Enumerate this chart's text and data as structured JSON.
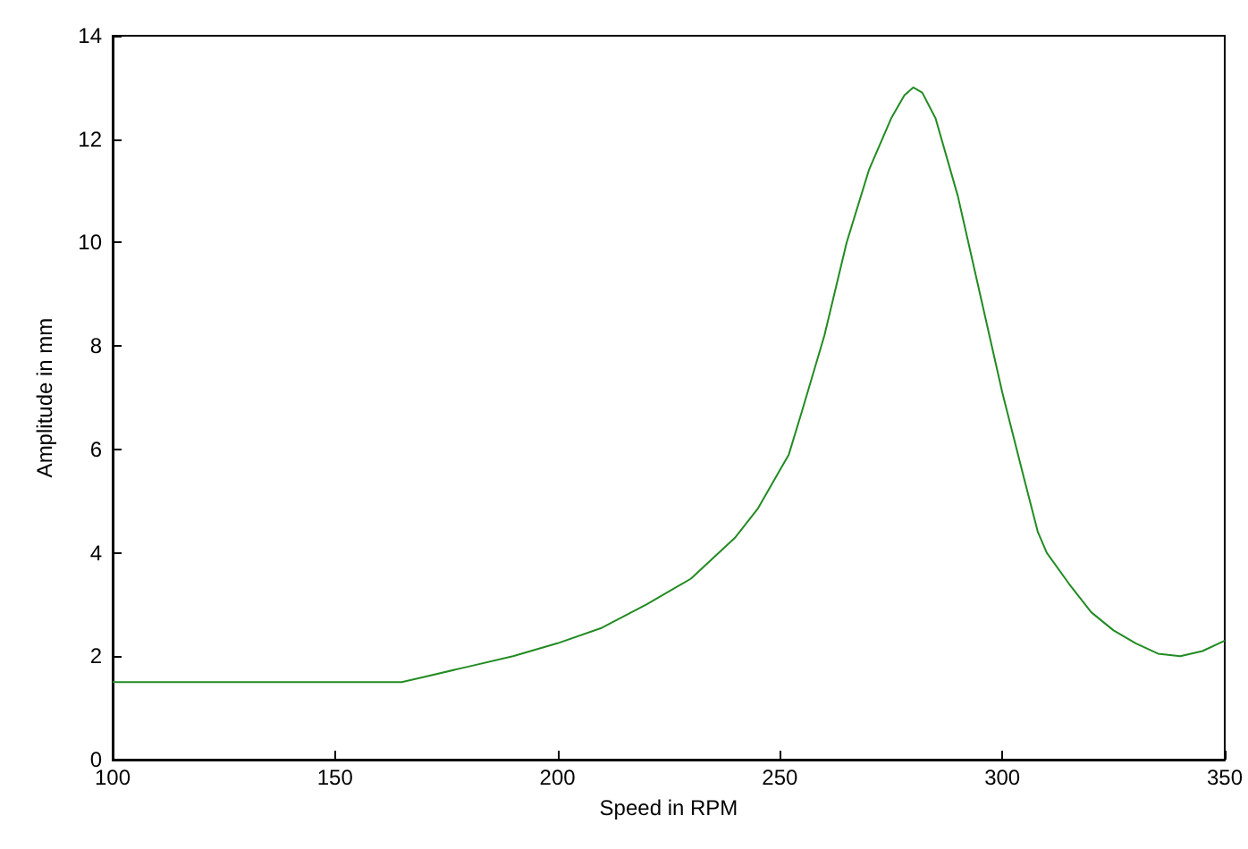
{
  "chart_data": {
    "type": "line",
    "xlabel": "Speed in RPM",
    "ylabel": "Amplitude in mm",
    "series": [
      {
        "color": "#228b22",
        "x": [
          100,
          165,
          170,
          180,
          190,
          200,
          210,
          220,
          230,
          240,
          245,
          250,
          252,
          255,
          260,
          265,
          270,
          275,
          278,
          280,
          282,
          285,
          290,
          295,
          300,
          305,
          308,
          310,
          315,
          320,
          325,
          330,
          335,
          340,
          345,
          350
        ],
        "values": [
          1.5,
          1.5,
          1.6,
          1.8,
          2.0,
          2.25,
          2.55,
          3.0,
          3.5,
          4.3,
          4.85,
          5.6,
          5.9,
          6.75,
          8.2,
          10.0,
          11.4,
          12.4,
          12.85,
          13.0,
          12.9,
          12.4,
          10.9,
          9.0,
          7.1,
          5.4,
          4.4,
          4.0,
          3.4,
          2.85,
          2.5,
          2.25,
          2.05,
          2.0,
          2.1,
          2.3
        ]
      }
    ],
    "xlim": [
      100,
      350
    ],
    "xticks": [
      100,
      150,
      200,
      250,
      300,
      350
    ],
    "ylim": [
      0,
      14
    ],
    "yticks": [
      0,
      2,
      4,
      6,
      8,
      10,
      12,
      14
    ],
    "grid": false,
    "marker": "none",
    "line_style": "solid"
  }
}
